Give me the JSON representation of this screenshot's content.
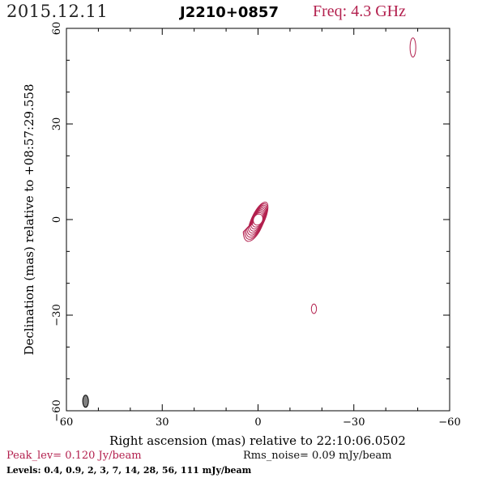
{
  "header": {
    "date": "2015.12.11",
    "source": "J2210+0857",
    "freq": "Freq: 4.3 GHz"
  },
  "footer": {
    "peak": "Peak_lev=  0.120 Jy/beam",
    "rms": "Rms_noise= 0.09 mJy/beam",
    "levels": "Levels: 0.4,  0.9,    2,    3,    7,   14,   28,   56,  111 mJy/beam"
  },
  "colors": {
    "contour": "#b3204e",
    "axis": "#000000",
    "beam_fill": "#808080"
  },
  "chart_data": {
    "type": "contour",
    "xlabel": "Right ascension (mas) relative to 22:10:06.0502",
    "ylabel": "Declination (mas) relative to +08:57:29.558",
    "xlim": [
      60,
      -60
    ],
    "ylim": [
      -60,
      60
    ],
    "xticks": [
      60,
      30,
      0,
      -30,
      -60
    ],
    "yticks": [
      -60,
      -30,
      0,
      30,
      60
    ],
    "xtick_labels": [
      "60",
      "30",
      "0",
      "−30",
      "−60"
    ],
    "ytick_labels": [
      "−60",
      "−30",
      "0",
      "30",
      "60"
    ],
    "levels_mJy": [
      0.4,
      0.9,
      2,
      3,
      7,
      14,
      28,
      56,
      111
    ],
    "peak_Jy_per_beam": 0.12,
    "rms_mJy_per_beam": 0.09,
    "core": {
      "x": 0,
      "y": 0,
      "pa_deg": -25
    },
    "components": [
      {
        "x": -17.5,
        "y": -28,
        "rx": 0.8,
        "ry": 1.5
      },
      {
        "x": -48.5,
        "y": 54,
        "rx": 0.9,
        "ry": 3.0
      }
    ],
    "beam": {
      "x": 54,
      "y": -57,
      "rx": 0.9,
      "ry": 1.9
    }
  }
}
